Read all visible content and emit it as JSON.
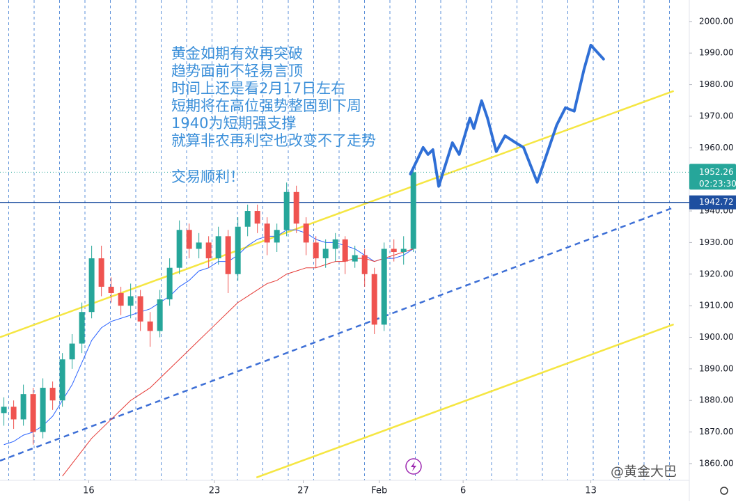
{
  "chart_data": {
    "type": "candlestick",
    "annotations": [
      "黄金如期有效再突破",
      "趋势面前不轻易言顶",
      "时间上还是看2月17日左右",
      "短期将在高位强势整固到下周",
      "1940为短期强支撑",
      "就算非农再利空也改变不了走势",
      "交易顺利！"
    ],
    "open": [
      1876,
      1878,
      1874,
      1882,
      1870,
      1884,
      1880,
      1893,
      1898,
      1908,
      1925,
      1916,
      1914,
      1910,
      1913,
      1905,
      1902,
      1912,
      1922,
      1934,
      1928,
      1930,
      1925,
      1932,
      1920,
      1935,
      1940,
      1936,
      1930,
      1934,
      1946,
      1936,
      1930,
      1925,
      1928,
      1931,
      1924,
      1926,
      1920,
      1904,
      1928,
      1927,
      1928
    ],
    "high": [
      1881,
      1880,
      1885,
      1884,
      1887,
      1886,
      1895,
      1901,
      1911,
      1929,
      1929,
      1919,
      1916,
      1917,
      1915,
      1908,
      1915,
      1925,
      1937,
      1936,
      1933,
      1932,
      1935,
      1934,
      1938,
      1942,
      1942,
      1938,
      1936,
      1949,
      1948,
      1938,
      1932,
      1931,
      1933,
      1932,
      1929,
      1928,
      1922,
      1930,
      1931,
      1932,
      1954
    ],
    "low": [
      1872,
      1871,
      1872,
      1866,
      1868,
      1877,
      1878,
      1890,
      1895,
      1906,
      1913,
      1911,
      1907,
      1906,
      1902,
      1897,
      1900,
      1910,
      1920,
      1925,
      1925,
      1922,
      1923,
      1914,
      1918,
      1932,
      1933,
      1926,
      1927,
      1932,
      1933,
      1926,
      1922,
      1922,
      1924,
      1920,
      1922,
      1916,
      1901,
      1902,
      1924,
      1923,
      1927
    ],
    "close": [
      1878,
      1874,
      1882,
      1870,
      1884,
      1880,
      1893,
      1898,
      1908,
      1925,
      1916,
      1914,
      1910,
      1913,
      1905,
      1902,
      1912,
      1922,
      1934,
      1928,
      1930,
      1925,
      1932,
      1920,
      1935,
      1940,
      1936,
      1930,
      1934,
      1946,
      1936,
      1930,
      1925,
      1928,
      1931,
      1924,
      1926,
      1920,
      1904,
      1928,
      1927,
      1928,
      1952.26
    ],
    "up_color": "#26a69a",
    "down_color": "#ef5350",
    "series": [
      {
        "color": "#2962ff",
        "values": [
          1866,
          1867,
          1869,
          1870,
          1872,
          1875,
          1880,
          1885,
          1892,
          1899,
          1903,
          1905,
          1906,
          1907,
          1908,
          1909,
          1911,
          1913,
          1916,
          1918,
          1921,
          1922,
          1924,
          1924,
          1926,
          1929,
          1931,
          1932,
          1932,
          1934,
          1934,
          1933,
          1931,
          1930,
          1930,
          1929,
          1928,
          1926,
          1924,
          1925,
          1925,
          1926,
          1928
        ]
      },
      {
        "color": "#e53935",
        "values": [
          null,
          null,
          null,
          null,
          null,
          null,
          1856,
          1860,
          1864,
          1868,
          1871,
          1874,
          1877,
          1880,
          1882,
          1884,
          1887,
          1890,
          1893,
          1896,
          1899,
          1902,
          1905,
          1908,
          1911,
          1913,
          1915,
          1917,
          1918,
          1920,
          1921,
          1922,
          1922,
          1923,
          1924,
          1924,
          1925,
          1925,
          1924,
          1925,
          1926,
          1927,
          1928
        ]
      }
    ],
    "trend_lines": [
      {
        "color": "#f5e642",
        "dash": false,
        "x": [
          -0.4,
          68.7
        ],
        "y": [
          1900,
          1978
        ]
      },
      {
        "color": "#f5e642",
        "dash": false,
        "x": [
          25.9,
          68.7
        ],
        "y": [
          1855.6,
          1904.1
        ]
      },
      {
        "color": "#3d6fd6",
        "dash": true,
        "x": [
          -0.4,
          68.7
        ],
        "y": [
          1860.9,
          1941.1
        ]
      }
    ],
    "hline": {
      "value": 1942.72,
      "color": "#1e4fa0"
    },
    "countdown": "02:23:30",
    "projection": {
      "color": "#2f6fd6",
      "x": [
        41.7,
        43.0,
        43.5,
        44.0,
        44.6,
        46.0,
        46.7,
        47.8,
        48.2,
        49.0,
        49.6,
        50.5,
        51.4,
        52.5,
        53.3,
        54.7,
        56.7,
        57.6,
        58.5,
        59.5,
        60.2,
        61.5
      ],
      "y": [
        1951.7,
        1960.1,
        1957.9,
        1959.4,
        1947.8,
        1961.6,
        1957.9,
        1969.4,
        1966.1,
        1974.9,
        1969.4,
        1958.8,
        1963.8,
        1961.6,
        1960.1,
        1949.1,
        1967.2,
        1972.7,
        1971.6,
        1984.8,
        1992.5,
        1988.1
      ]
    },
    "xlim": [
      -0.4,
      70.3
    ],
    "ylim": [
      1854.7,
      2006.8
    ],
    "xticks": [
      {
        "value": 8.7,
        "label": "16"
      },
      {
        "value": 21.6,
        "label": "23"
      },
      {
        "value": 30.7,
        "label": "27"
      },
      {
        "value": 38.5,
        "label": "Feb"
      },
      {
        "value": 47.1,
        "label": "6"
      },
      {
        "value": 60.2,
        "label": "13"
      }
    ],
    "yticks": [
      {
        "value": 1860,
        "label": "1860.00"
      },
      {
        "value": 1870,
        "label": "1870.00"
      },
      {
        "value": 1880,
        "label": "1880.00"
      },
      {
        "value": 1890,
        "label": "1890.00"
      },
      {
        "value": 1900,
        "label": "1900.00"
      },
      {
        "value": 1910,
        "label": "1910.00"
      },
      {
        "value": 1920,
        "label": "1920.00"
      },
      {
        "value": 1930,
        "label": "1930.00"
      },
      {
        "value": 1940,
        "label": "1940.00"
      },
      {
        "value": 1950,
        "label": "1950.00"
      },
      {
        "value": 1960,
        "label": "1960.00"
      },
      {
        "value": 1970,
        "label": "1970.00"
      },
      {
        "value": 1980,
        "label": "1980.00"
      },
      {
        "value": 1990,
        "label": "1990.00"
      },
      {
        "value": 2000,
        "label": "2000.00"
      }
    ],
    "watermark": "@黄金大巴"
  }
}
